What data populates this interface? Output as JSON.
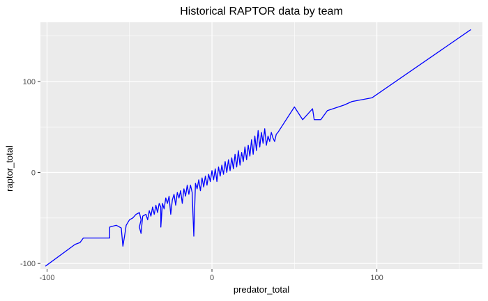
{
  "chart_data": {
    "type": "line",
    "title": "Historical RAPTOR data by team",
    "xlabel": "predator_total",
    "ylabel": "raptor_total",
    "xlim": [
      -104,
      164
    ],
    "ylim": [
      -106,
      165
    ],
    "x_ticks": [
      -100,
      0,
      100
    ],
    "y_ticks": [
      -100,
      0,
      100
    ],
    "x_tick_labels": [
      "-100",
      "0",
      "100"
    ],
    "y_tick_labels": [
      "-100",
      "0",
      "100"
    ],
    "grid": true,
    "legend": "none",
    "colors": {
      "panel": "#ebebeb",
      "grid_major": "#ffffff",
      "line": "#0000ff"
    },
    "series": [
      {
        "points": [
          [
            -101,
            -103
          ],
          [
            -83,
            -79
          ],
          [
            -80,
            -77
          ],
          [
            -78,
            -72
          ],
          [
            -72,
            -72
          ],
          [
            -62,
            -72
          ],
          [
            -62,
            -60
          ],
          [
            -58,
            -58
          ],
          [
            -55,
            -61
          ],
          [
            -54,
            -81
          ],
          [
            -53,
            -70
          ],
          [
            -52,
            -58
          ],
          [
            -50,
            -52
          ],
          [
            -48,
            -50
          ],
          [
            -46,
            -46
          ],
          [
            -44,
            -44
          ],
          [
            -43,
            -52
          ],
          [
            -44,
            -60
          ],
          [
            -43,
            -67
          ],
          [
            -42,
            -48
          ],
          [
            -40,
            -46
          ],
          [
            -39,
            -52
          ],
          [
            -38,
            -42
          ],
          [
            -37,
            -48
          ],
          [
            -36,
            -38
          ],
          [
            -35,
            -46
          ],
          [
            -34,
            -36
          ],
          [
            -33,
            -44
          ],
          [
            -32,
            -34
          ],
          [
            -31,
            -38
          ],
          [
            -31,
            -60
          ],
          [
            -30,
            -34
          ],
          [
            -29,
            -40
          ],
          [
            -28,
            -28
          ],
          [
            -27,
            -34
          ],
          [
            -26,
            -26
          ],
          [
            -25,
            -46
          ],
          [
            -24,
            -30
          ],
          [
            -23,
            -24
          ],
          [
            -22,
            -36
          ],
          [
            -21,
            -22
          ],
          [
            -20,
            -28
          ],
          [
            -19,
            -20
          ],
          [
            -18,
            -34
          ],
          [
            -17,
            -18
          ],
          [
            -16,
            -26
          ],
          [
            -15,
            -14
          ],
          [
            -14,
            -24
          ],
          [
            -13,
            -14
          ],
          [
            -12,
            -22
          ],
          [
            -11,
            -70
          ],
          [
            -10,
            -12
          ],
          [
            -9,
            -18
          ],
          [
            -8,
            -8
          ],
          [
            -7,
            -20
          ],
          [
            -6,
            -6
          ],
          [
            -5,
            -16
          ],
          [
            -4,
            -4
          ],
          [
            -3,
            -14
          ],
          [
            -2,
            -2
          ],
          [
            -1,
            -10
          ],
          [
            0,
            2
          ],
          [
            1,
            -8
          ],
          [
            2,
            4
          ],
          [
            3,
            -10
          ],
          [
            4,
            6
          ],
          [
            5,
            -4
          ],
          [
            6,
            8
          ],
          [
            7,
            -2
          ],
          [
            8,
            12
          ],
          [
            9,
            0
          ],
          [
            10,
            14
          ],
          [
            11,
            2
          ],
          [
            12,
            16
          ],
          [
            13,
            4
          ],
          [
            14,
            20
          ],
          [
            15,
            6
          ],
          [
            16,
            24
          ],
          [
            17,
            8
          ],
          [
            18,
            22
          ],
          [
            19,
            12
          ],
          [
            20,
            28
          ],
          [
            21,
            14
          ],
          [
            22,
            30
          ],
          [
            23,
            18
          ],
          [
            24,
            36
          ],
          [
            25,
            20
          ],
          [
            26,
            40
          ],
          [
            27,
            24
          ],
          [
            28,
            46
          ],
          [
            29,
            28
          ],
          [
            30,
            44
          ],
          [
            31,
            32
          ],
          [
            32,
            48
          ],
          [
            33,
            30
          ],
          [
            34,
            40
          ],
          [
            35,
            34
          ],
          [
            36,
            44
          ],
          [
            37,
            38
          ],
          [
            38,
            34
          ],
          [
            39,
            42
          ],
          [
            40,
            44
          ],
          [
            50,
            72
          ],
          [
            55,
            58
          ],
          [
            61,
            70
          ],
          [
            62,
            58
          ],
          [
            66,
            58
          ],
          [
            70,
            68
          ],
          [
            80,
            74
          ],
          [
            85,
            78
          ],
          [
            97,
            82
          ],
          [
            157,
            157
          ]
        ]
      }
    ]
  }
}
